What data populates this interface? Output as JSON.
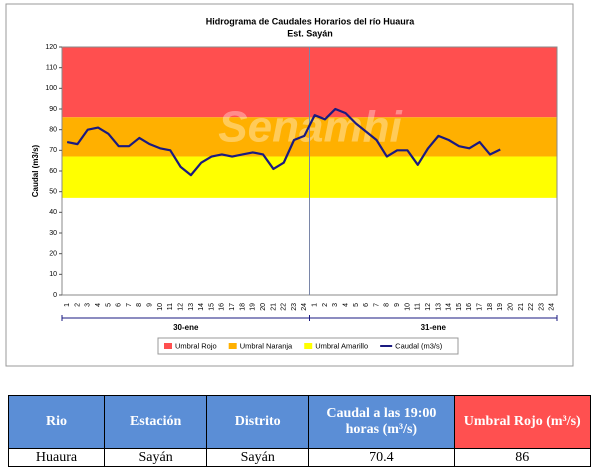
{
  "chart_data": {
    "type": "line",
    "title": "Hidrograma de Caudales Horarios del río Huaura",
    "subtitle": "Est. Sayán",
    "watermark": "Senamhi",
    "y_label": "Caudal  (m3/s)",
    "categories": [
      "1",
      "2",
      "3",
      "4",
      "5",
      "6",
      "7",
      "8",
      "9",
      "10",
      "11",
      "12",
      "13",
      "14",
      "15",
      "16",
      "17",
      "18",
      "19",
      "20",
      "21",
      "22",
      "23",
      "24",
      "1",
      "2",
      "3",
      "4",
      "5",
      "6",
      "7",
      "8",
      "9",
      "10",
      "11",
      "12",
      "13",
      "14",
      "15",
      "16",
      "17",
      "18",
      "19",
      "20",
      "21",
      "22",
      "23",
      "24"
    ],
    "groups": [
      "30-ene",
      "31-ene"
    ],
    "bands": [
      {
        "name": "Umbral Rojo",
        "color": "#ff4f4f",
        "from": 86,
        "to": 120
      },
      {
        "name": "Umbral Naranja",
        "color": "#ffb000",
        "from": 67,
        "to": 86
      },
      {
        "name": "Umbral Amarillo",
        "color": "#ffff00",
        "from": 47,
        "to": 67
      }
    ],
    "series": [
      {
        "name": "Caudal (m3/s)",
        "color": "#1a1a80",
        "values": [
          74,
          73,
          80,
          81,
          78,
          72,
          72,
          76,
          73,
          71,
          70,
          62,
          58,
          64,
          67,
          68,
          67,
          68,
          69,
          68,
          61,
          64,
          75,
          77,
          87,
          85,
          90,
          88,
          83,
          79,
          75,
          67,
          70,
          70,
          63,
          71,
          77,
          75,
          72,
          71,
          74,
          68,
          70.4,
          null,
          null,
          null,
          null,
          null
        ]
      }
    ],
    "ylim": [
      0,
      120
    ],
    "yticks": [
      0,
      10,
      20,
      30,
      40,
      50,
      60,
      70,
      80,
      90,
      100,
      110,
      120
    ]
  },
  "table": {
    "headers": [
      "Rio",
      "Estación",
      "Distrito",
      "Caudal a las 19:00 horas (m³/s)",
      "Umbral Rojo (m³/s)"
    ],
    "rows": [
      [
        "Huaura",
        "Sayán",
        "Sayán",
        "70.4",
        "86"
      ]
    ]
  }
}
